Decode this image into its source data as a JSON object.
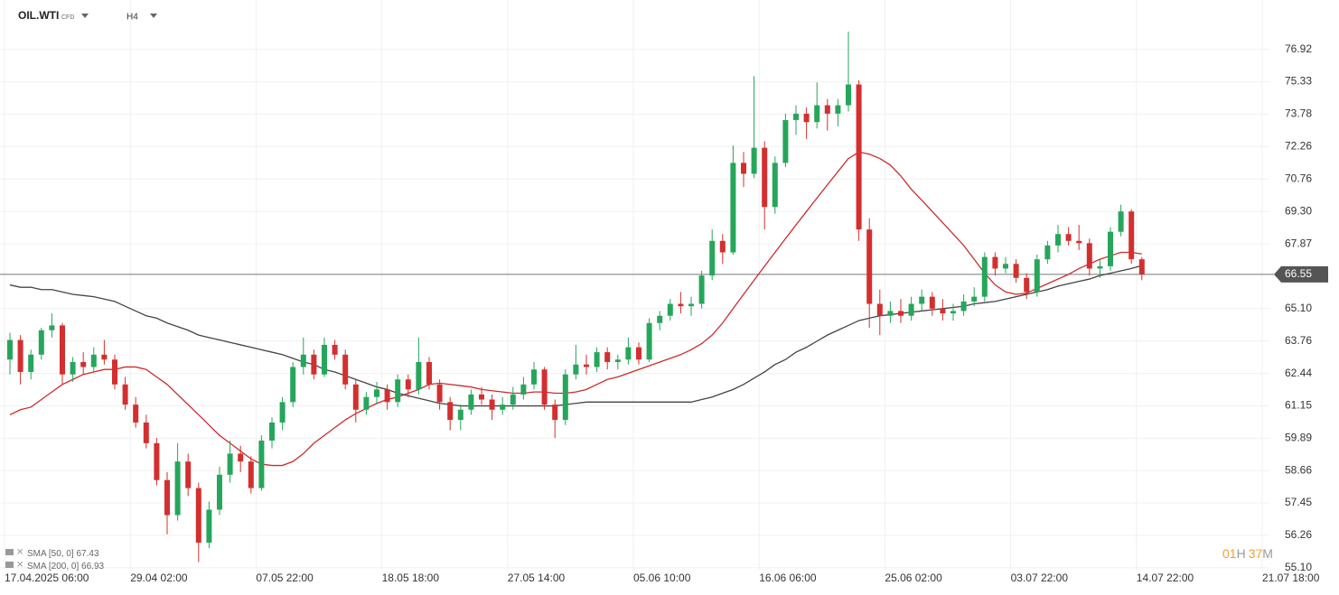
{
  "chart_data": {
    "type": "candlestick",
    "symbol": "OIL.WTI",
    "symbol_type": "CFD",
    "timeframe": "H4",
    "countdown": {
      "hours": "01",
      "hours_unit": "H",
      "minutes": "37",
      "minutes_unit": "M"
    },
    "log_scale": true,
    "grid": true,
    "up_color": "#26a65b",
    "down_color": "#d32f2f",
    "last_price": 66.55,
    "ylim": [
      55.0,
      79.4
    ],
    "yticks": [
      76.92,
      75.33,
      73.78,
      72.26,
      70.76,
      {
        "value": 69.3,
        "label": "69.30"
      },
      67.87,
      {
        "value": 65.1,
        "label": "65.10"
      },
      63.76,
      62.44,
      61.15,
      59.89,
      58.66,
      57.45,
      56.26,
      {
        "value": 55.1,
        "label": "55.10"
      }
    ],
    "categories": [
      "17.04.2025 06:00",
      null,
      null,
      null,
      null,
      null,
      null,
      null,
      null,
      null,
      null,
      null,
      "29.04 02:00",
      null,
      null,
      null,
      null,
      null,
      null,
      null,
      null,
      null,
      null,
      null,
      "07.05 22:00",
      null,
      null,
      null,
      null,
      null,
      null,
      null,
      null,
      null,
      null,
      null,
      "18.05 18:00",
      null,
      null,
      null,
      null,
      null,
      null,
      null,
      null,
      null,
      null,
      null,
      "27.05 14:00",
      null,
      null,
      null,
      null,
      null,
      null,
      null,
      null,
      null,
      null,
      null,
      "05.06 10:00",
      null,
      null,
      null,
      null,
      null,
      null,
      null,
      null,
      null,
      null,
      null,
      "16.06 06:00",
      null,
      null,
      null,
      null,
      null,
      null,
      null,
      null,
      null,
      null,
      null,
      "25.06 02:00",
      null,
      null,
      null,
      null,
      null,
      null,
      null,
      null,
      null,
      null,
      null,
      "03.07 22:00",
      null,
      null,
      null,
      null,
      null,
      null,
      null,
      null,
      null,
      null,
      null,
      "14.07 22:00",
      null,
      null,
      null,
      null,
      null,
      null,
      null,
      null,
      null,
      null,
      null,
      "21.07 18:00"
    ],
    "open": [
      63.0,
      63.8,
      62.5,
      63.2,
      64.2,
      64.4,
      62.4,
      62.9,
      62.7,
      63.2,
      63.0,
      62.0,
      61.2,
      60.5,
      59.7,
      58.3,
      57.0,
      59.0,
      58.0,
      56.0,
      57.2,
      58.5,
      59.3,
      59.0,
      58.0,
      59.8,
      60.5,
      61.3,
      62.7,
      63.2,
      62.4,
      63.6,
      63.2,
      62.0,
      61.0,
      61.5,
      61.8,
      61.3,
      62.2,
      61.8,
      62.9,
      62.0,
      61.3,
      60.6,
      61.0,
      61.6,
      61.4,
      61.0,
      61.2,
      61.6,
      62.0,
      62.6,
      61.2,
      60.6,
      62.4,
      62.8,
      62.7,
      63.3,
      62.9,
      63.0,
      63.5,
      63.0,
      64.5,
      64.8,
      65.3,
      65.2,
      65.3,
      66.5,
      68.0,
      67.5,
      71.5,
      71.0,
      72.2,
      69.5,
      71.5,
      73.5,
      73.8,
      73.4,
      74.2,
      73.8,
      74.2,
      75.2,
      68.5,
      65.3,
      64.8,
      65.0,
      64.8,
      65.3,
      65.6,
      65.1,
      64.9,
      65.0,
      65.4,
      65.6,
      67.3,
      66.8,
      67.0,
      66.4,
      65.8,
      67.2,
      67.8,
      68.3,
      68.0,
      67.9,
      66.8,
      66.9,
      68.4,
      69.3,
      67.2,
      null,
      null,
      null,
      null,
      null,
      null,
      null,
      null,
      null,
      null,
      null,
      null
    ],
    "high": [
      64.1,
      64.0,
      63.4,
      64.3,
      64.9,
      64.5,
      63.1,
      63.3,
      63.5,
      63.8,
      63.2,
      62.3,
      61.5,
      60.8,
      59.9,
      58.6,
      59.7,
      59.3,
      58.2,
      57.5,
      58.8,
      59.8,
      59.6,
      59.2,
      60.0,
      60.7,
      61.5,
      62.9,
      63.9,
      63.4,
      63.9,
      63.8,
      63.4,
      62.2,
      61.7,
      62.1,
      62.0,
      62.4,
      62.4,
      63.9,
      63.1,
      62.2,
      61.5,
      61.2,
      61.8,
      61.9,
      61.6,
      61.5,
      61.9,
      62.3,
      62.9,
      62.7,
      61.4,
      62.6,
      63.6,
      63.2,
      63.5,
      63.5,
      63.2,
      63.9,
      63.7,
      64.7,
      65.0,
      65.5,
      65.8,
      65.6,
      66.7,
      68.5,
      68.3,
      72.3,
      72.0,
      75.6,
      72.5,
      71.8,
      73.8,
      74.2,
      74.1,
      75.3,
      74.5,
      74.5,
      77.8,
      75.4,
      69.0,
      65.9,
      65.4,
      65.5,
      65.6,
      65.9,
      65.8,
      65.5,
      65.3,
      65.7,
      66.0,
      67.5,
      67.5,
      67.3,
      67.2,
      66.6,
      67.4,
      68.0,
      68.7,
      68.6,
      68.7,
      68.1,
      67.2,
      68.6,
      69.6,
      69.4,
      67.3,
      null,
      null,
      null,
      null,
      null,
      null,
      null,
      null,
      null,
      null,
      null,
      null
    ],
    "low": [
      62.4,
      62.0,
      62.2,
      63.0,
      63.9,
      62.0,
      62.1,
      62.4,
      62.5,
      62.8,
      61.8,
      61.0,
      60.3,
      59.5,
      58.1,
      56.3,
      56.8,
      57.7,
      55.3,
      55.8,
      57.0,
      58.2,
      58.6,
      57.8,
      57.9,
      59.5,
      60.2,
      61.1,
      62.4,
      62.2,
      62.3,
      63.0,
      61.8,
      60.5,
      60.8,
      61.2,
      61.0,
      61.1,
      61.5,
      61.6,
      61.8,
      61.0,
      60.2,
      60.2,
      60.8,
      61.2,
      60.6,
      60.8,
      61.0,
      61.4,
      61.8,
      61.0,
      59.9,
      60.4,
      62.2,
      62.4,
      62.5,
      62.6,
      62.6,
      62.8,
      62.8,
      62.9,
      64.2,
      64.6,
      64.9,
      64.8,
      65.1,
      66.3,
      67.0,
      67.4,
      70.4,
      70.8,
      68.5,
      69.2,
      71.3,
      72.8,
      72.6,
      73.1,
      73.0,
      73.2,
      73.9,
      68.0,
      64.3,
      64.0,
      64.5,
      64.5,
      64.6,
      65.0,
      64.8,
      64.6,
      64.6,
      64.8,
      65.2,
      65.4,
      66.5,
      66.6,
      66.2,
      65.5,
      65.6,
      67.0,
      67.5,
      67.8,
      67.6,
      66.5,
      66.4,
      66.7,
      68.2,
      67.0,
      66.3,
      null,
      null,
      null,
      null,
      null,
      null,
      null,
      null,
      null,
      null,
      null,
      null
    ],
    "close": [
      63.8,
      62.5,
      63.2,
      64.2,
      64.4,
      62.4,
      62.9,
      62.7,
      63.2,
      63.0,
      62.0,
      61.2,
      60.5,
      59.7,
      58.3,
      57.0,
      59.0,
      58.0,
      56.0,
      57.2,
      58.5,
      59.3,
      59.0,
      58.0,
      59.8,
      60.5,
      61.3,
      62.7,
      63.2,
      62.4,
      63.6,
      63.2,
      62.0,
      61.0,
      61.5,
      61.8,
      61.3,
      62.2,
      61.8,
      62.9,
      62.0,
      61.3,
      60.6,
      61.0,
      61.6,
      61.4,
      61.0,
      61.2,
      61.6,
      62.0,
      62.6,
      61.2,
      60.6,
      62.4,
      62.8,
      62.7,
      63.3,
      62.9,
      63.0,
      63.5,
      63.0,
      64.5,
      64.8,
      65.3,
      65.2,
      65.3,
      66.5,
      68.0,
      67.5,
      71.5,
      71.0,
      72.2,
      69.5,
      71.5,
      73.5,
      73.8,
      73.4,
      74.2,
      73.8,
      74.2,
      75.2,
      68.5,
      65.3,
      64.8,
      65.0,
      64.8,
      65.3,
      65.6,
      65.1,
      64.9,
      65.0,
      65.4,
      65.6,
      67.3,
      66.8,
      67.0,
      66.4,
      65.8,
      67.2,
      67.8,
      68.3,
      68.0,
      67.9,
      66.8,
      66.9,
      68.4,
      69.3,
      67.2,
      66.55,
      null,
      null,
      null,
      null,
      null,
      null,
      null,
      null,
      null,
      null,
      null,
      null
    ],
    "indicators": [
      {
        "name": "SMA [50, 0]",
        "value": 67.43,
        "color": "#cc2b2b",
        "values": [
          60.8,
          61.0,
          61.1,
          61.4,
          61.7,
          62.0,
          62.2,
          62.4,
          62.5,
          62.6,
          62.6,
          62.7,
          62.7,
          62.6,
          62.3,
          62.0,
          61.6,
          61.2,
          60.8,
          60.4,
          60.0,
          59.7,
          59.4,
          59.1,
          58.9,
          58.85,
          58.85,
          59.0,
          59.3,
          59.7,
          60.0,
          60.3,
          60.6,
          60.85,
          61.05,
          61.25,
          61.4,
          61.5,
          61.65,
          61.8,
          62.0,
          62.05,
          62.0,
          61.95,
          61.9,
          61.8,
          61.75,
          61.7,
          61.65,
          61.65,
          61.7,
          61.7,
          61.65,
          61.65,
          61.7,
          61.8,
          62.0,
          62.2,
          62.3,
          62.45,
          62.6,
          62.75,
          62.9,
          63.05,
          63.2,
          63.4,
          63.65,
          64.0,
          64.5,
          65.1,
          65.7,
          66.3,
          66.9,
          67.5,
          68.1,
          68.7,
          69.3,
          69.9,
          70.5,
          71.1,
          71.7,
          72.0,
          71.9,
          71.7,
          71.4,
          70.9,
          70.3,
          69.8,
          69.3,
          68.8,
          68.3,
          67.8,
          67.2,
          66.6,
          66.1,
          65.8,
          65.7,
          65.75,
          65.95,
          66.15,
          66.35,
          66.55,
          66.8,
          67.0,
          67.2,
          67.35,
          67.5,
          67.5,
          67.43,
          null,
          null,
          null,
          null,
          null,
          null,
          null,
          null,
          null,
          null,
          null,
          null
        ]
      },
      {
        "name": "SMA [200, 0]",
        "value": 66.93,
        "color": "#444444",
        "values": [
          66.1,
          66.0,
          66.0,
          65.9,
          65.9,
          65.8,
          65.7,
          65.65,
          65.6,
          65.5,
          65.4,
          65.2,
          65.0,
          64.8,
          64.7,
          64.5,
          64.35,
          64.2,
          64.0,
          63.9,
          63.8,
          63.7,
          63.6,
          63.5,
          63.4,
          63.3,
          63.2,
          63.05,
          62.9,
          62.8,
          62.6,
          62.5,
          62.35,
          62.2,
          62.05,
          61.9,
          61.8,
          61.65,
          61.55,
          61.45,
          61.35,
          61.25,
          61.2,
          61.15,
          61.15,
          61.15,
          61.15,
          61.15,
          61.15,
          61.15,
          61.15,
          61.15,
          61.15,
          61.2,
          61.25,
          61.3,
          61.3,
          61.3,
          61.3,
          61.3,
          61.3,
          61.3,
          61.3,
          61.3,
          61.3,
          61.3,
          61.4,
          61.5,
          61.65,
          61.8,
          62.0,
          62.25,
          62.5,
          62.8,
          63.0,
          63.3,
          63.5,
          63.75,
          64.0,
          64.2,
          64.4,
          64.6,
          64.7,
          64.8,
          64.85,
          64.9,
          64.95,
          65.0,
          65.05,
          65.1,
          65.15,
          65.2,
          65.3,
          65.35,
          65.4,
          65.5,
          65.6,
          65.7,
          65.8,
          65.9,
          66.05,
          66.15,
          66.25,
          66.35,
          66.5,
          66.6,
          66.7,
          66.8,
          66.93,
          null,
          null,
          null,
          null,
          null,
          null,
          null,
          null,
          null,
          null,
          null,
          null
        ]
      }
    ]
  }
}
